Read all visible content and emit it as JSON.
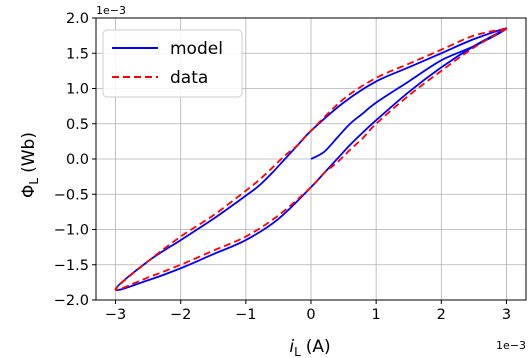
{
  "chart_data": {
    "type": "line",
    "xlabel": "i_L (A)",
    "xlabel_parts": {
      "symbol": "i",
      "sub": "L",
      "unit": "(A)"
    },
    "ylabel": "Φ_L (Wb)",
    "ylabel_parts": {
      "symbol": "Φ",
      "sub": "L",
      "unit": "(Wb)"
    },
    "x_scale_label": "1e−3",
    "y_scale_label": "1e−3",
    "xlim": [
      -3.3,
      3.3
    ],
    "ylim": [
      -2.0,
      2.0
    ],
    "x_ticks": [
      -3,
      -2,
      -1,
      0,
      1,
      2,
      3
    ],
    "x_tick_labels": [
      "−3",
      "−2",
      "−1",
      "0",
      "1",
      "2",
      "3"
    ],
    "y_ticks": [
      -2.0,
      -1.5,
      -1.0,
      -0.5,
      0.0,
      0.5,
      1.0,
      1.5,
      2.0
    ],
    "y_tick_labels": [
      "−2.0",
      "−1.5",
      "−1.0",
      "−0.5",
      "0.0",
      "0.5",
      "1.0",
      "1.5",
      "2.0"
    ],
    "grid": true,
    "legend_position": "top-left",
    "series": [
      {
        "name": "model",
        "color": "#0000ff",
        "dash": "solid",
        "x": [
          0.0,
          0.2,
          0.4,
          0.6,
          0.8,
          1.0,
          1.5,
          2.0,
          2.5,
          3.0,
          2.5,
          2.0,
          1.5,
          1.0,
          0.5,
          0.0,
          -0.2,
          -0.4,
          -0.6,
          -0.8,
          -1.0,
          -1.5,
          -2.0,
          -2.5,
          -3.0,
          -2.5,
          -2.0,
          -1.5,
          -1.0,
          -0.5,
          0.0,
          0.2,
          0.4,
          0.6,
          0.8,
          1.0,
          1.5,
          2.0,
          2.5,
          3.0
        ],
        "y": [
          0.0,
          0.1,
          0.3,
          0.5,
          0.65,
          0.8,
          1.1,
          1.4,
          1.6,
          1.85,
          1.7,
          1.5,
          1.3,
          1.1,
          0.8,
          0.4,
          0.2,
          0.0,
          -0.2,
          -0.38,
          -0.52,
          -0.85,
          -1.15,
          -1.45,
          -1.85,
          -1.72,
          -1.55,
          -1.35,
          -1.15,
          -0.85,
          -0.4,
          -0.2,
          0.0,
          0.2,
          0.38,
          0.55,
          0.95,
          1.3,
          1.6,
          1.85
        ]
      },
      {
        "name": "data",
        "color": "#ff0000",
        "dash": "dashed",
        "x": [
          3.0,
          2.5,
          2.0,
          1.5,
          1.0,
          0.5,
          0.0,
          -0.2,
          -0.4,
          -0.6,
          -0.8,
          -1.0,
          -1.5,
          -2.0,
          -2.5,
          -3.0,
          -2.5,
          -2.0,
          -1.5,
          -1.0,
          -0.5,
          0.0,
          0.2,
          0.4,
          0.6,
          0.8,
          1.0,
          1.5,
          2.0,
          2.5,
          3.0
        ],
        "y": [
          1.85,
          1.75,
          1.55,
          1.35,
          1.15,
          0.85,
          0.4,
          0.2,
          0.05,
          -0.13,
          -0.3,
          -0.45,
          -0.8,
          -1.1,
          -1.45,
          -1.85,
          -1.68,
          -1.5,
          -1.3,
          -1.1,
          -0.8,
          -0.4,
          -0.2,
          -0.05,
          0.13,
          0.3,
          0.5,
          0.9,
          1.25,
          1.58,
          1.85
        ]
      }
    ]
  }
}
